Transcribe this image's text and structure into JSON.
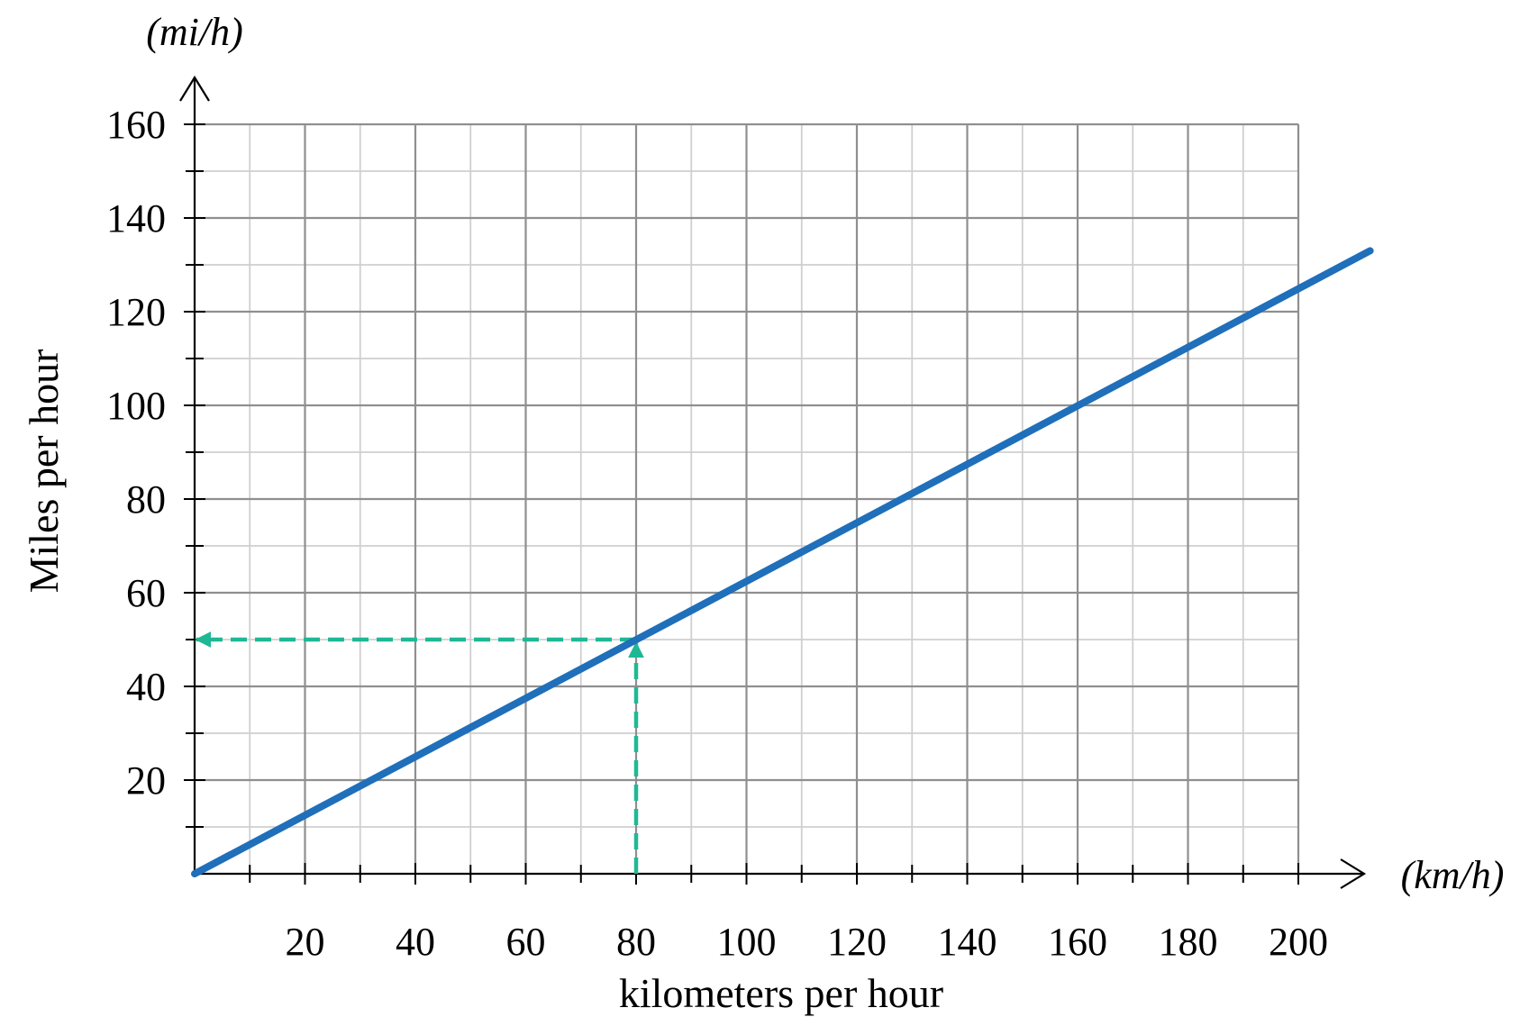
{
  "chart_data": {
    "type": "line",
    "xlabel": "kilometers per hour",
    "ylabel": "Miles per hour",
    "x_unit": "(km/h)",
    "y_unit": "(mi/h)",
    "xlim": [
      0,
      200
    ],
    "ylim": [
      0,
      160
    ],
    "x_ticks": [
      "20",
      "40",
      "60",
      "80",
      "100",
      "120",
      "140",
      "160",
      "180",
      "200"
    ],
    "y_ticks": [
      "20",
      "40",
      "60",
      "80",
      "100",
      "120",
      "140",
      "160"
    ],
    "grid": true,
    "series": [
      {
        "x": [
          0,
          213
        ],
        "y": [
          0,
          133
        ],
        "color": "#1f6fba"
      }
    ],
    "annotation": {
      "type": "dashed-arrows",
      "x": 80,
      "y": 50,
      "color": "#1fb896"
    }
  }
}
